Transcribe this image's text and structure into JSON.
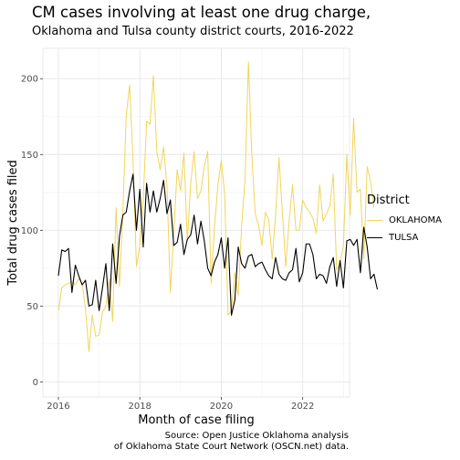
{
  "title": "CM cases involving at least one drug charge,",
  "subtitle": "Oklahoma and Tulsa county district courts, 2016-2022",
  "caption_line1": "Source: Open Justice Oklahoma analysis",
  "caption_line2": "of Oklahoma State Court Network (OSCN.net) data.",
  "legend": {
    "title": "District",
    "items": [
      {
        "label": "OKLAHOMA",
        "color": "#f1d55a"
      },
      {
        "label": "TULSA",
        "color": "#000000"
      }
    ]
  },
  "chart_data": {
    "type": "line",
    "title": "CM cases involving at least one drug charge,",
    "subtitle": "Oklahoma and Tulsa county district courts, 2016-2022",
    "xlabel": "Month of case filing",
    "ylabel": "Total drug cases filed",
    "xlim": [
      2015.62,
      2023.15
    ],
    "ylim": [
      -10,
      220
    ],
    "x_ticks": [
      2016,
      2018,
      2020,
      2022
    ],
    "x_tick_labels": [
      "2016",
      "2018",
      "2020",
      "2022"
    ],
    "y_ticks": [
      0,
      50,
      100,
      150,
      200
    ],
    "y_tick_labels": [
      "0",
      "50",
      "100",
      "150",
      "200"
    ],
    "grid": true,
    "legend_position": "right",
    "x_start": 2016.0,
    "x_step": 0.08333,
    "series": [
      {
        "name": "OKLAHOMA",
        "color": "#f1d55a",
        "values": [
          47,
          62,
          64,
          65,
          66,
          64,
          68,
          65,
          48,
          20,
          44,
          30,
          31,
          46,
          50,
          68,
          40,
          115,
          63,
          112,
          176,
          196,
          146,
          76,
          90,
          120,
          172,
          170,
          202,
          152,
          140,
          155,
          129,
          59,
          98,
          140,
          126,
          151,
          93,
          131,
          152,
          121,
          126,
          142,
          152,
          65,
          102,
          130,
          146,
          124,
          44,
          47,
          72,
          57,
          103,
          133,
          211,
          150,
          111,
          103,
          90,
          112,
          107,
          81,
          110,
          148,
          112,
          76,
          106,
          130,
          100,
          100,
          120,
          115,
          112,
          108,
          98,
          130,
          106,
          111,
          116,
          137,
          74,
          78,
          90,
          150,
          110,
          174,
          125,
          127,
          81,
          142,
          132,
          115
        ]
      },
      {
        "name": "TULSA",
        "color": "#000000",
        "values": [
          70,
          87,
          86,
          88,
          59,
          77,
          70,
          64,
          67,
          50,
          51,
          67,
          47,
          62,
          78,
          47,
          91,
          65,
          96,
          110,
          112,
          126,
          137,
          100,
          127,
          89,
          131,
          112,
          126,
          112,
          121,
          133,
          111,
          120,
          90,
          92,
          104,
          84,
          94,
          97,
          110,
          91,
          106,
          93,
          75,
          70,
          79,
          84,
          95,
          75,
          95,
          44,
          54,
          89,
          78,
          75,
          83,
          84,
          76,
          78,
          79,
          74,
          70,
          68,
          82,
          71,
          68,
          67,
          72,
          74,
          88,
          66,
          72,
          91,
          91,
          84,
          68,
          71,
          70,
          65,
          76,
          82,
          63,
          80,
          62,
          93,
          94,
          90,
          94,
          72,
          102,
          89,
          68,
          71,
          61
        ]
      }
    ]
  }
}
